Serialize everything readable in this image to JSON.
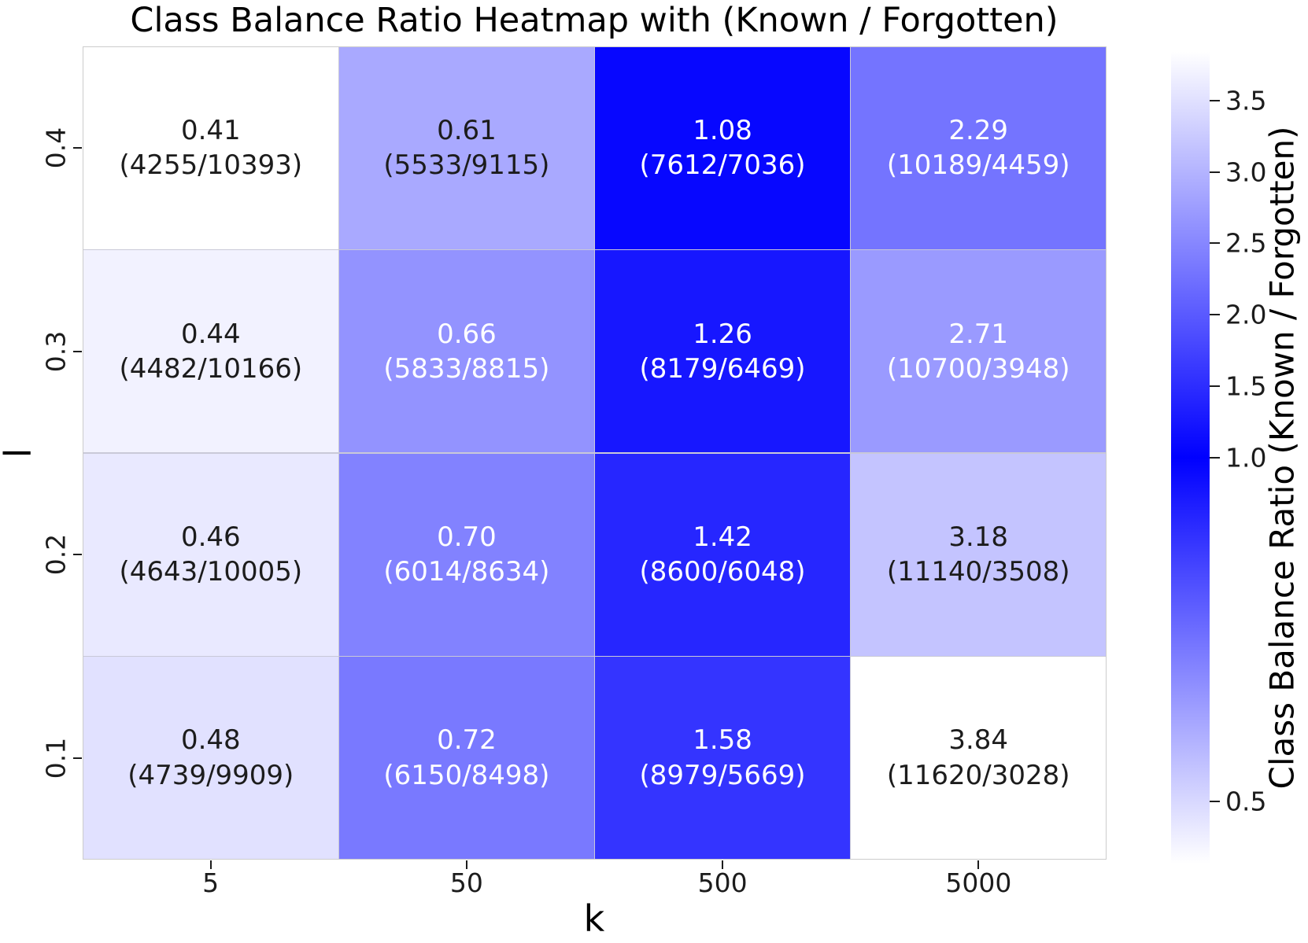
{
  "chart_data": {
    "type": "heatmap",
    "title": "Class Balance Ratio Heatmap with (Known / Forgotten)",
    "xlabel": "k",
    "ylabel": "l",
    "x_ticklabels": [
      "5",
      "50",
      "500",
      "5000"
    ],
    "y_ticklabels": [
      "0.4",
      "0.3",
      "0.2",
      "0.1"
    ],
    "rows": [
      {
        "l": "0.4",
        "cells": [
          {
            "ratio": 0.41,
            "ratio_label": "0.41",
            "counts_label": "(4255/10393)",
            "known": 4255,
            "forgotten": 10393
          },
          {
            "ratio": 0.61,
            "ratio_label": "0.61",
            "counts_label": "(5533/9115)",
            "known": 5533,
            "forgotten": 9115
          },
          {
            "ratio": 1.08,
            "ratio_label": "1.08",
            "counts_label": "(7612/7036)",
            "known": 7612,
            "forgotten": 7036
          },
          {
            "ratio": 2.29,
            "ratio_label": "2.29",
            "counts_label": "(10189/4459)",
            "known": 10189,
            "forgotten": 4459
          }
        ]
      },
      {
        "l": "0.3",
        "cells": [
          {
            "ratio": 0.44,
            "ratio_label": "0.44",
            "counts_label": "(4482/10166)",
            "known": 4482,
            "forgotten": 10166
          },
          {
            "ratio": 0.66,
            "ratio_label": "0.66",
            "counts_label": "(5833/8815)",
            "known": 5833,
            "forgotten": 8815
          },
          {
            "ratio": 1.26,
            "ratio_label": "1.26",
            "counts_label": "(8179/6469)",
            "known": 8179,
            "forgotten": 6469
          },
          {
            "ratio": 2.71,
            "ratio_label": "2.71",
            "counts_label": "(10700/3948)",
            "known": 10700,
            "forgotten": 3948
          }
        ]
      },
      {
        "l": "0.2",
        "cells": [
          {
            "ratio": 0.46,
            "ratio_label": "0.46",
            "counts_label": "(4643/10005)",
            "known": 4643,
            "forgotten": 10005
          },
          {
            "ratio": 0.7,
            "ratio_label": "0.70",
            "counts_label": "(6014/8634)",
            "known": 6014,
            "forgotten": 8634
          },
          {
            "ratio": 1.42,
            "ratio_label": "1.42",
            "counts_label": "(8600/6048)",
            "known": 8600,
            "forgotten": 6048
          },
          {
            "ratio": 3.18,
            "ratio_label": "3.18",
            "counts_label": "(11140/3508)",
            "known": 11140,
            "forgotten": 3508
          }
        ]
      },
      {
        "l": "0.1",
        "cells": [
          {
            "ratio": 0.48,
            "ratio_label": "0.48",
            "counts_label": "(4739/9909)",
            "known": 4739,
            "forgotten": 9909
          },
          {
            "ratio": 0.72,
            "ratio_label": "0.72",
            "counts_label": "(6150/8498)",
            "known": 6150,
            "forgotten": 8498
          },
          {
            "ratio": 1.58,
            "ratio_label": "1.58",
            "counts_label": "(8979/5669)",
            "known": 8979,
            "forgotten": 5669
          },
          {
            "ratio": 3.84,
            "ratio_label": "3.84",
            "counts_label": "(11620/3028)",
            "known": 11620,
            "forgotten": 3028
          }
        ]
      }
    ],
    "colorbar": {
      "label": "Class Balance Ratio (Known / Forgotten)",
      "tick_labels": [
        "3.5",
        "3.0",
        "2.5",
        "2.0",
        "1.5",
        "1.0",
        "0.5"
      ],
      "tick_values": [
        3.5,
        3.0,
        2.5,
        2.0,
        1.5,
        1.0,
        0.5
      ],
      "vmin": 0.41,
      "vcenter": 1.0,
      "vmax": 3.84,
      "center_color": "#0000ff",
      "edge_color": "#ffffff"
    }
  }
}
